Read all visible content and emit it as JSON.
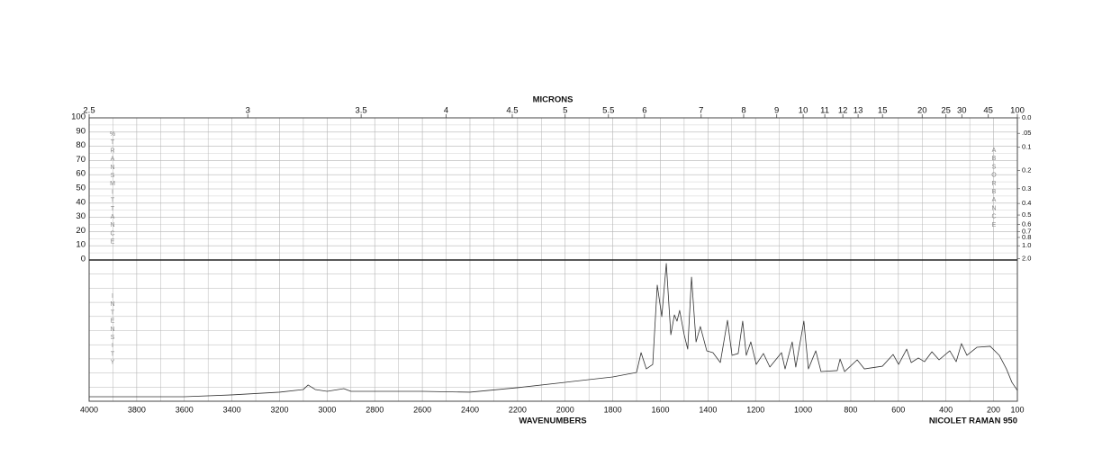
{
  "chart_data": {
    "type": "line",
    "x2_label": "MICRONS",
    "x_label": "WAVENUMBERS",
    "instrument": "NICOLET RAMAN 950",
    "t_label": "%TRANSMITTANCE",
    "a_label": "ABSORBANCE",
    "y_label": "INTENSITY",
    "xlim": [
      4000,
      100
    ],
    "xticks": [
      4000,
      3800,
      3600,
      3400,
      3200,
      3000,
      2800,
      2600,
      2400,
      2200,
      2000,
      1800,
      1600,
      1400,
      1200,
      1000,
      800,
      600,
      400,
      200,
      100
    ],
    "x2ticks": [
      2.5,
      3,
      3.5,
      4,
      4.5,
      5,
      5.5,
      6,
      7,
      8,
      9,
      10,
      11,
      12,
      13,
      15,
      20,
      25,
      30,
      45,
      100
    ],
    "tlim": [
      0,
      100
    ],
    "tticks": [
      0,
      10,
      20,
      30,
      40,
      50,
      60,
      70,
      80,
      90,
      100
    ],
    "aticks": [
      {
        "value": 0,
        "label": "0.0"
      },
      {
        "value": 0.05,
        "label": ".05"
      },
      0.1,
      0.2,
      0.3,
      0.4,
      0.5,
      0.6,
      0.7,
      0.8,
      {
        "value": 1,
        "label": "1.0"
      },
      {
        "value": 2,
        "label": "2.0"
      }
    ],
    "ylim": [
      0,
      100
    ],
    "grid": true,
    "color": "#333333",
    "x": [
      4000,
      3800,
      3600,
      3400,
      3200,
      3100,
      3080,
      3050,
      3000,
      2930,
      2900,
      2800,
      2600,
      2400,
      2200,
      2000,
      1800,
      1700,
      1681,
      1659,
      1632,
      1613,
      1594,
      1575,
      1556,
      1541,
      1530,
      1519,
      1500,
      1485,
      1469,
      1450,
      1432,
      1405,
      1379,
      1348,
      1318,
      1299,
      1273,
      1254,
      1239,
      1220,
      1197,
      1167,
      1140,
      1091,
      1076,
      1046,
      1031,
      997,
      978,
      947,
      925,
      857,
      845,
      826,
      773,
      743,
      667,
      622,
      599,
      565,
      546,
      516,
      490,
      459,
      429,
      384,
      357,
      335,
      312,
      270,
      214,
      176,
      146,
      123,
      100
    ],
    "values": [
      3.2,
      3.2,
      3.2,
      4.5,
      6.4,
      8.3,
      11.5,
      8.3,
      7.0,
      8.9,
      7.0,
      7.0,
      7.0,
      6.4,
      9.6,
      13.4,
      17.2,
      20.4,
      34.4,
      22.9,
      26.1,
      82.2,
      59.9,
      97.5,
      47.1,
      61.1,
      56.7,
      64.3,
      47.1,
      36.9,
      87.9,
      42.0,
      52.9,
      35.7,
      34.4,
      27.4,
      57.3,
      32.5,
      33.8,
      56.7,
      32.5,
      42.0,
      26.1,
      33.8,
      24.2,
      34.4,
      22.9,
      42.0,
      24.2,
      56.7,
      22.9,
      35.7,
      21.0,
      21.7,
      29.9,
      21.0,
      29.3,
      22.9,
      24.8,
      33.1,
      26.1,
      36.9,
      27.4,
      30.6,
      28.0,
      35.0,
      29.3,
      35.7,
      28.0,
      40.8,
      32.5,
      38.2,
      38.9,
      32.5,
      22.9,
      13.4,
      7.6
    ]
  }
}
